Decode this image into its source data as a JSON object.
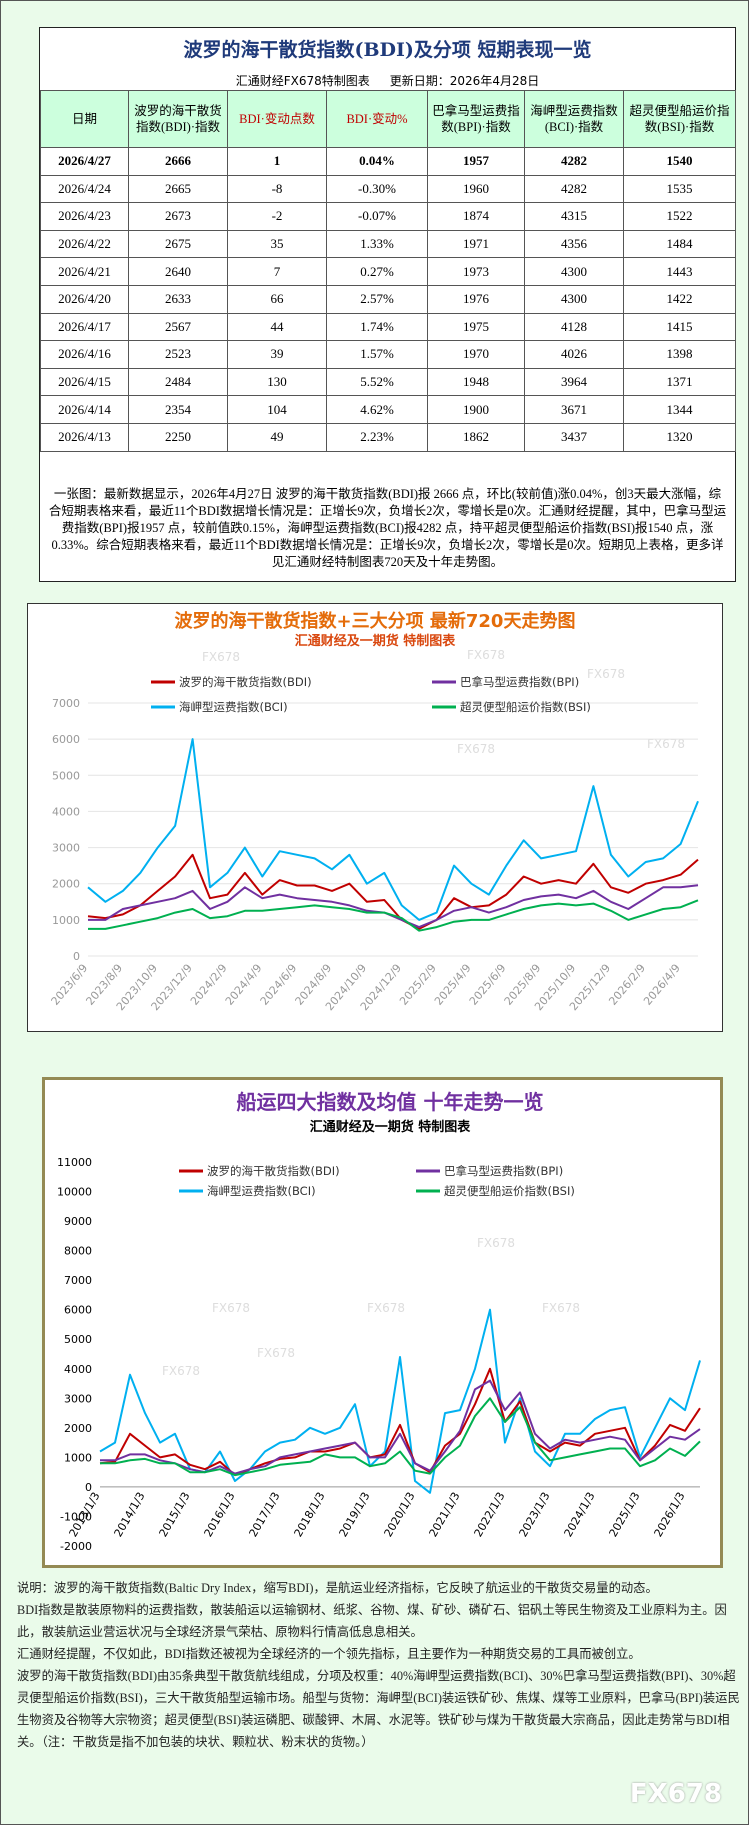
{
  "header": {
    "title": "波罗的海干散货指数(BDI)及分项  短期表现一览",
    "source": "汇通财经FX678特制图表",
    "updated": "更新日期：2026年4月28日"
  },
  "table": {
    "columns": [
      "日期",
      "波罗的海干散货指数(BDI)·指数",
      "BDI·变动点数",
      "BDI·变动%",
      "巴拿马型运费指数(BPI)·指数",
      "海岬型运费指数(BCI)·指数",
      "超灵便型船运价指数(BSI)·指数"
    ],
    "rows": [
      [
        "2026/4/27",
        "2666",
        "1",
        "0.04%",
        "1957",
        "4282",
        "1540"
      ],
      [
        "2026/4/24",
        "2665",
        "-8",
        "-0.30%",
        "1960",
        "4282",
        "1535"
      ],
      [
        "2026/4/23",
        "2673",
        "-2",
        "-0.07%",
        "1874",
        "4315",
        "1522"
      ],
      [
        "2026/4/22",
        "2675",
        "35",
        "1.33%",
        "1971",
        "4356",
        "1484"
      ],
      [
        "2026/4/21",
        "2640",
        "7",
        "0.27%",
        "1973",
        "4300",
        "1443"
      ],
      [
        "2026/4/20",
        "2633",
        "66",
        "2.57%",
        "1976",
        "4300",
        "1422"
      ],
      [
        "2026/4/17",
        "2567",
        "44",
        "1.74%",
        "1975",
        "4128",
        "1415"
      ],
      [
        "2026/4/16",
        "2523",
        "39",
        "1.57%",
        "1970",
        "4026",
        "1398"
      ],
      [
        "2026/4/15",
        "2484",
        "130",
        "5.52%",
        "1948",
        "3964",
        "1371"
      ],
      [
        "2026/4/14",
        "2354",
        "104",
        "4.62%",
        "1900",
        "3671",
        "1344"
      ],
      [
        "2026/4/13",
        "2250",
        "49",
        "2.23%",
        "1862",
        "3437",
        "1320"
      ]
    ]
  },
  "summary": "一张图：最新数据显示，2026年4月27日 波罗的海干散货指数(BDI)报 2666 点，环比(较前值)涨0.04%，创3天最大涨幅，综合短期表格来看，最近11个BDI数据增长情况是：正增长9次，负增长2次，零增长是0次。汇通财经提醒，其中，巴拿马型运费指数(BPI)报1957 点，较前值跌0.15%，海岬型运费指数(BCI)报4282 点，持平超灵便型船运价指数(BSI)报1540 点，涨0.33%。综合短期表格来看，最近11个BDI数据增长情况是：正增长9次，负增长2次，零增长是0次。短期见上表格，更多详见汇通财经特制图表720天及十年走势图。",
  "chart_data": [
    {
      "type": "line",
      "title": "波罗的海干散货指数+三大分项  最新720天走势图",
      "subtitle": "汇通财经及一期货 特制图表",
      "categories": [
        "2023/6/9",
        null,
        "2023/8/9",
        null,
        "2023/10/9",
        null,
        "2023/12/9",
        null,
        "2024/2/9",
        null,
        "2024/4/9",
        null,
        "2024/6/9",
        null,
        "2024/8/9",
        null,
        "2024/10/9",
        null,
        "2024/12/9",
        null,
        "2025/2/9",
        null,
        "2025/4/9",
        null,
        "2025/6/9",
        null,
        "2025/8/9",
        null,
        "2025/10/9",
        null,
        "2025/12/9",
        null,
        "2026/2/9",
        null,
        "2026/4/9",
        null
      ],
      "series": [
        {
          "name": "波罗的海干散货指数(BDI)",
          "color": "#c00000",
          "values": [
            1100,
            1050,
            1150,
            1400,
            1800,
            2200,
            2800,
            1600,
            1700,
            2300,
            1700,
            2100,
            1950,
            1950,
            1800,
            2000,
            1500,
            1550,
            1000,
            750,
            1000,
            1600,
            1350,
            1400,
            1700,
            2200,
            2000,
            2100,
            2000,
            2550,
            1900,
            1750,
            2000,
            2100,
            2250,
            2666
          ]
        },
        {
          "name": "巴拿马型运费指数(BPI)",
          "color": "#7030a0",
          "values": [
            1000,
            1000,
            1300,
            1400,
            1500,
            1600,
            1800,
            1300,
            1500,
            1900,
            1600,
            1700,
            1600,
            1550,
            1500,
            1400,
            1250,
            1200,
            1000,
            800,
            1000,
            1250,
            1350,
            1200,
            1350,
            1550,
            1650,
            1700,
            1600,
            1800,
            1500,
            1300,
            1600,
            1900,
            1900,
            1957
          ]
        },
        {
          "name": "海岬型运费指数(BCI)",
          "color": "#00b0f0",
          "values": [
            1900,
            1500,
            1800,
            2300,
            3000,
            3600,
            6000,
            1900,
            2300,
            3000,
            2200,
            2900,
            2800,
            2700,
            2400,
            2800,
            2000,
            2300,
            1400,
            1000,
            1200,
            2500,
            2000,
            1700,
            2500,
            3200,
            2700,
            2800,
            2900,
            4700,
            2800,
            2200,
            2600,
            2700,
            3100,
            4282
          ]
        },
        {
          "name": "超灵便型船运价指数(BSI)",
          "color": "#00b050",
          "values": [
            750,
            750,
            850,
            950,
            1050,
            1200,
            1300,
            1050,
            1100,
            1250,
            1250,
            1300,
            1350,
            1400,
            1350,
            1300,
            1200,
            1200,
            1050,
            700,
            800,
            950,
            1000,
            1000,
            1150,
            1300,
            1400,
            1450,
            1400,
            1450,
            1250,
            1000,
            1150,
            1300,
            1350,
            1540
          ]
        }
      ],
      "ylim": [
        0,
        7000
      ],
      "yticks": [
        0,
        1000,
        2000,
        3000,
        4000,
        5000,
        6000,
        7000
      ],
      "grid": true
    },
    {
      "type": "line",
      "title": "船运四大指数及均值 十年走势一览",
      "subtitle": "汇通财经及一期货 特制图表",
      "categories": [
        "2013/1/3",
        null,
        null,
        "2014/1/3",
        null,
        null,
        "2015/1/3",
        null,
        null,
        "2016/1/3",
        null,
        null,
        "2017/1/3",
        null,
        null,
        "2018/1/3",
        null,
        null,
        "2019/1/3",
        null,
        null,
        "2020/1/3",
        null,
        null,
        "2021/1/3",
        null,
        null,
        "2022/1/3",
        null,
        null,
        "2023/1/3",
        null,
        null,
        "2024/1/3",
        null,
        null,
        "2025/1/3",
        null,
        null,
        "2026/1/3",
        null
      ],
      "series": [
        {
          "name": "波罗的海干散货指数(BDI)",
          "color": "#c00000",
          "values": [
            800,
            850,
            1800,
            1400,
            1000,
            1100,
            750,
            600,
            850,
            400,
            600,
            800,
            950,
            1000,
            1200,
            1200,
            1300,
            1500,
            1000,
            1100,
            2100,
            800,
            500,
            1400,
            1800,
            2800,
            4000,
            2200,
            2900,
            1500,
            1200,
            1500,
            1400,
            1800,
            1900,
            2000,
            900,
            1400,
            2100,
            1900,
            2666
          ]
        },
        {
          "name": "巴拿马型运费指数(BPI)",
          "color": "#7030a0",
          "values": [
            900,
            900,
            1100,
            1100,
            900,
            800,
            600,
            500,
            700,
            450,
            600,
            700,
            1000,
            1100,
            1200,
            1300,
            1400,
            1500,
            1000,
            1000,
            1800,
            800,
            550,
            1200,
            1900,
            3300,
            3600,
            2600,
            3200,
            1800,
            1300,
            1600,
            1500,
            1600,
            1700,
            1600,
            900,
            1300,
            1700,
            1600,
            1957
          ]
        },
        {
          "name": "海岬型运费指数(BCI)",
          "color": "#00b0f0",
          "values": [
            1200,
            1500,
            3800,
            2500,
            1500,
            1800,
            600,
            500,
            1200,
            200,
            600,
            1200,
            1500,
            1600,
            2000,
            1800,
            2000,
            2800,
            700,
            1200,
            4400,
            200,
            -200,
            2500,
            2600,
            4000,
            6000,
            1500,
            3000,
            1200,
            700,
            1800,
            1800,
            2300,
            2600,
            2700,
            1000,
            2000,
            3000,
            2600,
            4282
          ]
        },
        {
          "name": "超灵便型船运价指数(BSI)",
          "color": "#00b050",
          "values": [
            800,
            800,
            900,
            950,
            800,
            800,
            500,
            500,
            600,
            400,
            500,
            600,
            750,
            800,
            850,
            1100,
            1000,
            1000,
            700,
            800,
            1200,
            550,
            450,
            1000,
            1400,
            2400,
            3000,
            2200,
            2700,
            1500,
            900,
            1000,
            1100,
            1200,
            1300,
            1300,
            700,
            900,
            1300,
            1050,
            1540
          ]
        }
      ],
      "ylim": [
        -2000,
        11000
      ],
      "yticks": [
        -2000,
        -1000,
        0,
        1000,
        2000,
        3000,
        4000,
        5000,
        6000,
        7000,
        8000,
        9000,
        10000,
        11000
      ],
      "grid": false
    }
  ],
  "notes": [
    "说明：波罗的海干散货指数(Baltic Dry Index，缩写BDI)，是航运业经济指标，它反映了航运业的干散货交易量的动态。",
    "BDI指数是散装原物料的运费指数，散装船运以运输钢材、纸浆、谷物、煤、矿砂、磷矿石、铝矾土等民生物资及工业原料为主。因此，散装航运业营运状况与全球经济景气荣枯、原物料行情高低息息相关。",
    "汇通财经提醒，不仅如此，BDI指数还被视为全球经济的一个领先指标，且主要作为一种期货交易的工具而被创立。",
    "波罗的海干散货指数(BDI)由35条典型干散货航线组成，分项及权重：40%海岬型运费指数(BCI)、30%巴拿马型运费指数(BPI)、30%超灵便型船运价指数(BSI)，三大干散货船型运输市场。船型与货物：海岬型(BCI)装运铁矿砂、焦煤、煤等工业原料，巴拿马(BPI)装运民生物资及谷物等大宗物资；超灵便型(BSI)装运磷肥、碳酸钾、木屑、水泥等。铁矿砂与煤为干散货最大宗商品，因此走势常与BDI相关。（注：干散货是指不加包装的块状、颗粒状、粉末状的货物。）"
  ],
  "watermark": "FX678"
}
